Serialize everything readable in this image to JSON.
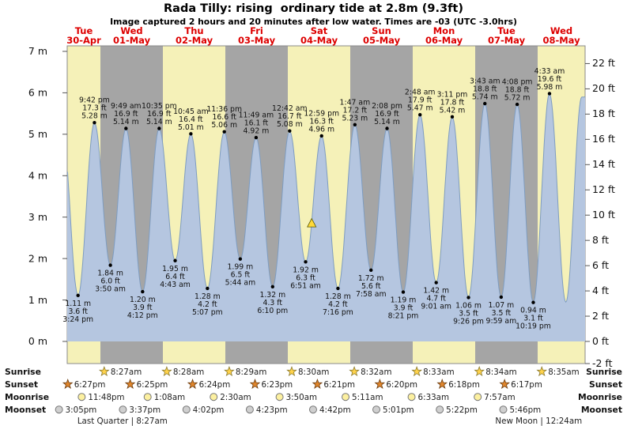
{
  "chart_data": {
    "type": "area",
    "title": "Rada Tilly: rising  ordinary tide at 2.8m (9.3ft)",
    "subtitle": "Image captured 2 hours and 20 minutes after low water. Times are -03 (UTC -3.0hrs)",
    "y_axis_left": {
      "unit": "m",
      "min": 0,
      "max": 7,
      "ticks": [
        "7 m",
        "6 m",
        "5 m",
        "4 m",
        "3 m",
        "2 m",
        "1 m",
        "0 m"
      ]
    },
    "y_axis_right": {
      "unit": "ft",
      "ticks": [
        "22 ft",
        "20 ft",
        "18 ft",
        "16 ft",
        "14 ft",
        "12 ft",
        "10 ft",
        "8 ft",
        "6 ft",
        "4 ft",
        "2 ft",
        "0 ft",
        "-2 ft"
      ]
    },
    "days": [
      {
        "name": "Tue",
        "date": "30-Apr",
        "shade": "light"
      },
      {
        "name": "Wed",
        "date": "01-May",
        "shade": "dark"
      },
      {
        "name": "Thu",
        "date": "02-May",
        "shade": "light"
      },
      {
        "name": "Fri",
        "date": "03-May",
        "shade": "dark"
      },
      {
        "name": "Sat",
        "date": "04-May",
        "shade": "light"
      },
      {
        "name": "Sun",
        "date": "05-May",
        "shade": "dark"
      },
      {
        "name": "Mon",
        "date": "06-May",
        "shade": "light"
      },
      {
        "name": "Tue",
        "date": "07-May",
        "shade": "dark"
      },
      {
        "name": "Wed",
        "date": "08-May",
        "shade": "light"
      }
    ],
    "tide_events": [
      {
        "day": 0,
        "hour": 9.25,
        "type": "high",
        "height_m": 5.2
      },
      {
        "day": 0,
        "hour": 15.4,
        "type": "low",
        "height_m": 1.11,
        "label_m": "1.11 m",
        "label_ft": "3.6 ft",
        "label_time": "3:24 pm"
      },
      {
        "day": 0,
        "hour": 21.7,
        "type": "high",
        "height_m": 5.28,
        "label_time": "9:42 pm",
        "label_ft": "17.3 ft",
        "label_m": "5.28 m"
      },
      {
        "day": 1,
        "hour": 3.83,
        "type": "low",
        "height_m": 1.84,
        "label_m": "1.84 m",
        "label_ft": "6.0 ft",
        "label_time": "3:50 am"
      },
      {
        "day": 1,
        "hour": 9.82,
        "type": "high",
        "height_m": 5.14,
        "label_time": "9:49 am",
        "label_ft": "16.9 ft",
        "label_m": "5.14 m"
      },
      {
        "day": 1,
        "hour": 16.2,
        "type": "low",
        "height_m": 1.2,
        "label_m": "1.20 m",
        "label_ft": "3.9 ft",
        "label_time": "4:12 pm"
      },
      {
        "day": 1,
        "hour": 22.58,
        "type": "high",
        "height_m": 5.14,
        "label_time": "10:35 pm",
        "label_ft": "16.9 ft",
        "label_m": "5.14 m"
      },
      {
        "day": 2,
        "hour": 4.72,
        "type": "low",
        "height_m": 1.95,
        "label_m": "1.95 m",
        "label_ft": "6.4 ft",
        "label_time": "4:43 am"
      },
      {
        "day": 2,
        "hour": 10.75,
        "type": "high",
        "height_m": 5.01,
        "label_time": "10:45 am",
        "label_ft": "16.4 ft",
        "label_m": "5.01 m"
      },
      {
        "day": 2,
        "hour": 17.12,
        "type": "low",
        "height_m": 1.28,
        "label_m": "1.28 m",
        "label_ft": "4.2 ft",
        "label_time": "5:07 pm"
      },
      {
        "day": 2,
        "hour": 23.6,
        "type": "high",
        "height_m": 5.06,
        "label_time": "11:36 pm",
        "label_ft": "16.6 ft",
        "label_m": "5.06 m"
      },
      {
        "day": 3,
        "hour": 5.73,
        "type": "low",
        "height_m": 1.99,
        "label_m": "1.99 m",
        "label_ft": "6.5 ft",
        "label_time": "5:44 am"
      },
      {
        "day": 3,
        "hour": 11.82,
        "type": "high",
        "height_m": 4.92,
        "label_time": "11:49 am",
        "label_ft": "16.1 ft",
        "label_m": "4.92 m"
      },
      {
        "day": 3,
        "hour": 18.17,
        "type": "low",
        "height_m": 1.32,
        "label_m": "1.32 m",
        "label_ft": "4.3 ft",
        "label_time": "6:10 pm"
      },
      {
        "day": 4,
        "hour": 0.7,
        "type": "high",
        "height_m": 5.08,
        "label_time": "12:42 am",
        "label_ft": "16.7 ft",
        "label_m": "5.08 m"
      },
      {
        "day": 4,
        "hour": 6.85,
        "type": "low",
        "height_m": 1.92,
        "label_m": "1.92 m",
        "label_ft": "6.3 ft",
        "label_time": "6:51 am"
      },
      {
        "day": 4,
        "hour": 12.98,
        "type": "high",
        "height_m": 4.96,
        "label_time": "12:59 pm",
        "label_ft": "16.3 ft",
        "label_m": "4.96 m"
      },
      {
        "day": 4,
        "hour": 19.27,
        "type": "low",
        "height_m": 1.28,
        "label_m": "1.28 m",
        "label_ft": "4.2 ft",
        "label_time": "7:16 pm"
      },
      {
        "day": 5,
        "hour": 1.78,
        "type": "high",
        "height_m": 5.23,
        "label_time": "1:47 am",
        "label_ft": "17.2 ft",
        "label_m": "5.23 m"
      },
      {
        "day": 5,
        "hour": 7.97,
        "type": "low",
        "height_m": 1.72,
        "label_m": "1.72 m",
        "label_ft": "5.6 ft",
        "label_time": "7:58 am"
      },
      {
        "day": 5,
        "hour": 14.13,
        "type": "high",
        "height_m": 5.14,
        "label_time": "2:08 pm",
        "label_ft": "16.9 ft",
        "label_m": "5.14 m"
      },
      {
        "day": 5,
        "hour": 20.35,
        "type": "low",
        "height_m": 1.19,
        "label_m": "1.19 m",
        "label_ft": "3.9 ft",
        "label_time": "8:21 pm"
      },
      {
        "day": 6,
        "hour": 2.8,
        "type": "high",
        "height_m": 5.47,
        "label_time": "2:48 am",
        "label_ft": "17.9 ft",
        "label_m": "5.47 m"
      },
      {
        "day": 6,
        "hour": 9.02,
        "type": "low",
        "height_m": 1.42,
        "label_m": "1.42 m",
        "label_ft": "4.7 ft",
        "label_time": "9:01 am"
      },
      {
        "day": 6,
        "hour": 15.18,
        "type": "high",
        "height_m": 5.42,
        "label_time": "3:11 pm",
        "label_ft": "17.8 ft",
        "label_m": "5.42 m"
      },
      {
        "day": 6,
        "hour": 21.43,
        "type": "low",
        "height_m": 1.06,
        "label_m": "1.06 m",
        "label_ft": "3.5 ft",
        "label_time": "9:26 pm"
      },
      {
        "day": 7,
        "hour": 3.72,
        "type": "high",
        "height_m": 5.74,
        "label_time": "3:43 am",
        "label_ft": "18.8 ft",
        "label_m": "5.74 m"
      },
      {
        "day": 7,
        "hour": 9.98,
        "type": "low",
        "height_m": 1.07,
        "label_m": "1.07 m",
        "label_ft": "3.5 ft",
        "label_time": "9:59 am"
      },
      {
        "day": 7,
        "hour": 16.13,
        "type": "high",
        "height_m": 5.72,
        "label_time": "4:08 pm",
        "label_ft": "18.8 ft",
        "label_m": "5.72 m"
      },
      {
        "day": 7,
        "hour": 22.32,
        "type": "low",
        "height_m": 0.94,
        "label_m": "0.94 m",
        "label_ft": "3.1 ft",
        "label_time": "10:19 pm"
      },
      {
        "day": 8,
        "hour": 4.55,
        "type": "high",
        "height_m": 5.98,
        "label_time": "4:33 am",
        "label_ft": "19.6 ft",
        "label_m": "5.98 m"
      },
      {
        "day": 8,
        "hour": 10.83,
        "type": "low",
        "height_m": 0.95
      },
      {
        "day": 8,
        "hour": 16.97,
        "type": "high",
        "height_m": 5.9
      }
    ],
    "now_marker": {
      "day": 4,
      "hour": 9.18,
      "height_m": 2.84
    }
  },
  "astro": {
    "sunrise": {
      "label": "Sunrise",
      "items": [
        {
          "day": 1,
          "hour": 8.45,
          "time": "8:27am"
        },
        {
          "day": 2,
          "hour": 8.47,
          "time": "8:28am"
        },
        {
          "day": 3,
          "hour": 8.48,
          "time": "8:29am"
        },
        {
          "day": 4,
          "hour": 8.5,
          "time": "8:30am"
        },
        {
          "day": 5,
          "hour": 8.53,
          "time": "8:32am"
        },
        {
          "day": 6,
          "hour": 8.55,
          "time": "8:33am"
        },
        {
          "day": 7,
          "hour": 8.57,
          "time": "8:34am"
        },
        {
          "day": 8,
          "hour": 8.58,
          "time": "8:35am"
        }
      ]
    },
    "sunset": {
      "label": "Sunset",
      "items": [
        {
          "day": 0,
          "hour": 18.45,
          "time": "6:27pm"
        },
        {
          "day": 1,
          "hour": 18.42,
          "time": "6:25pm"
        },
        {
          "day": 2,
          "hour": 18.4,
          "time": "6:24pm"
        },
        {
          "day": 3,
          "hour": 18.38,
          "time": "6:23pm"
        },
        {
          "day": 4,
          "hour": 18.35,
          "time": "6:21pm"
        },
        {
          "day": 5,
          "hour": 18.33,
          "time": "6:20pm"
        },
        {
          "day": 6,
          "hour": 18.3,
          "time": "6:18pm"
        },
        {
          "day": 7,
          "hour": 18.28,
          "time": "6:17pm"
        }
      ]
    },
    "moonrise": {
      "label": "Moonrise",
      "items": [
        {
          "day": 0,
          "hour": 23.8,
          "time": "11:48pm"
        },
        {
          "day": 2,
          "hour": 1.13,
          "time": "1:08am"
        },
        {
          "day": 3,
          "hour": 2.5,
          "time": "2:30am"
        },
        {
          "day": 4,
          "hour": 3.83,
          "time": "3:50am"
        },
        {
          "day": 5,
          "hour": 5.18,
          "time": "5:11am"
        },
        {
          "day": 6,
          "hour": 6.55,
          "time": "6:33am"
        },
        {
          "day": 7,
          "hour": 7.95,
          "time": "7:57am"
        }
      ]
    },
    "moonset": {
      "label": "Moonset",
      "items": [
        {
          "day": 0,
          "hour": 15.08,
          "time": "3:05pm"
        },
        {
          "day": 1,
          "hour": 15.62,
          "time": "3:37pm"
        },
        {
          "day": 2,
          "hour": 16.03,
          "time": "4:02pm"
        },
        {
          "day": 3,
          "hour": 16.38,
          "time": "4:23pm"
        },
        {
          "day": 4,
          "hour": 16.7,
          "time": "4:42pm"
        },
        {
          "day": 5,
          "hour": 17.02,
          "time": "5:01pm"
        },
        {
          "day": 6,
          "hour": 17.37,
          "time": "5:22pm"
        },
        {
          "day": 7,
          "hour": 17.77,
          "time": "5:46pm"
        }
      ]
    },
    "phases": [
      {
        "day": 1,
        "hour": 8.45,
        "text": "Last Quarter | 8:27am"
      },
      {
        "day": 8,
        "hour": 0.4,
        "text": "New Moon | 12:24am"
      }
    ]
  },
  "colors": {
    "band_light": "#f5f1b8",
    "band_dark": "#a5a5a5",
    "tide_fill": "#b5c6e0",
    "tide_line": "#7e9cc0",
    "day_label_red": "#dd0000",
    "marker_yellow": "#ffd939",
    "sunrise_star": "#ffd24a",
    "sunset_star": "#e0862c",
    "moonrise_circle": "#fcf0a0",
    "moonset_circle": "#cfcfcf"
  }
}
